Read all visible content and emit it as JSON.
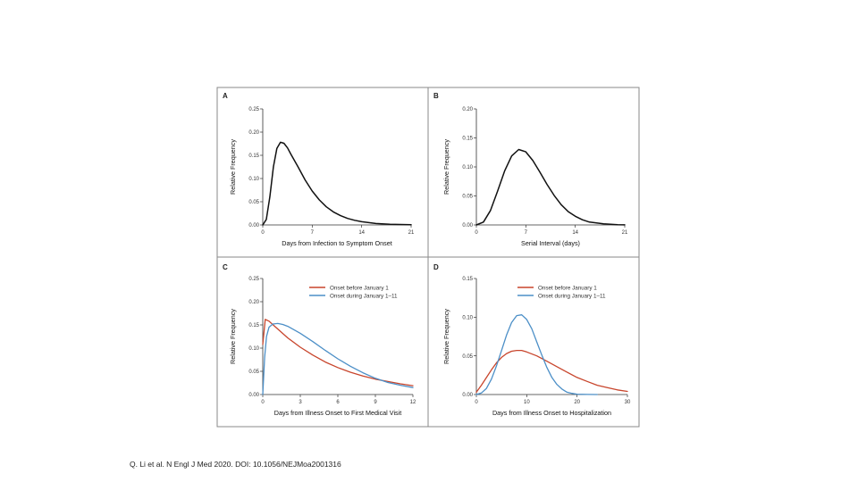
{
  "citation": "Q. Li et al. N Engl J Med 2020. DOI: 10.1056/NEJMoa2001316",
  "colors": {
    "black": "#111111",
    "red": "#c8452c",
    "blue": "#4c8fc7",
    "frame": "#8a8a8a"
  },
  "chart_data": [
    {
      "panel": "A",
      "type": "line",
      "xlabel": "Days from Infection to Symptom Onset",
      "ylabel": "Relative Frequency",
      "xlim": [
        0,
        21
      ],
      "ylim": [
        0,
        0.25
      ],
      "xticks": [
        "0",
        "7",
        "14",
        "21"
      ],
      "yticks": [
        "0.00",
        "0.05",
        "0.10",
        "0.15",
        "0.20",
        "0.25"
      ],
      "legend": [],
      "series": [
        {
          "name": "",
          "color": "#111111",
          "x": [
            0,
            0.5,
            1,
            1.5,
            2,
            2.5,
            3,
            3.5,
            4,
            5,
            6,
            7,
            8,
            9,
            10,
            11,
            12,
            13,
            14,
            16,
            18,
            21
          ],
          "y": [
            0.0,
            0.012,
            0.06,
            0.125,
            0.165,
            0.178,
            0.176,
            0.166,
            0.152,
            0.125,
            0.097,
            0.073,
            0.054,
            0.039,
            0.028,
            0.02,
            0.014,
            0.01,
            0.007,
            0.003,
            0.0015,
            0.0003
          ]
        }
      ]
    },
    {
      "panel": "B",
      "type": "line",
      "xlabel": "Serial Interval (days)",
      "ylabel": "Relative Frequency",
      "xlim": [
        0,
        21
      ],
      "ylim": [
        0,
        0.2
      ],
      "xticks": [
        "0",
        "7",
        "14",
        "21"
      ],
      "yticks": [
        "0.00",
        "0.05",
        "0.10",
        "0.15",
        "0.20"
      ],
      "legend": [],
      "series": [
        {
          "name": "",
          "color": "#111111",
          "x": [
            0,
            1,
            2,
            3,
            4,
            5,
            6,
            7,
            8,
            9,
            10,
            11,
            12,
            13,
            14,
            15,
            16,
            18,
            20,
            21
          ],
          "y": [
            0.0,
            0.005,
            0.025,
            0.058,
            0.093,
            0.119,
            0.13,
            0.126,
            0.111,
            0.091,
            0.07,
            0.051,
            0.035,
            0.023,
            0.015,
            0.009,
            0.005,
            0.002,
            0.0005,
            0.0002
          ]
        }
      ]
    },
    {
      "panel": "C",
      "type": "line",
      "xlabel": "Days from Illness Onset to First Medical Visit",
      "ylabel": "Relative Frequency",
      "xlim": [
        0,
        12
      ],
      "ylim": [
        0,
        0.25
      ],
      "xticks": [
        "0",
        "3",
        "6",
        "9",
        "12"
      ],
      "yticks": [
        "0.00",
        "0.05",
        "0.10",
        "0.15",
        "0.20",
        "0.25"
      ],
      "legend": [
        "Onset before January 1",
        "Onset during January 1–11"
      ],
      "series": [
        {
          "name": "Onset before January 1",
          "color": "#c8452c",
          "x": [
            0,
            0.2,
            0.5,
            1,
            2,
            3,
            4,
            5,
            6,
            7,
            8,
            9,
            10,
            11,
            12
          ],
          "y": [
            0.108,
            0.162,
            0.158,
            0.146,
            0.122,
            0.102,
            0.085,
            0.07,
            0.058,
            0.048,
            0.04,
            0.033,
            0.028,
            0.023,
            0.019
          ]
        }
      ]
    },
    {
      "panel": "C2",
      "type": "line",
      "xlim": [
        0,
        12
      ],
      "ylim": [
        0,
        0.25
      ],
      "series": [
        {
          "name": "Onset during January 1–11",
          "color": "#4c8fc7",
          "x": [
            0,
            0.15,
            0.3,
            0.5,
            0.8,
            1.2,
            1.6,
            2,
            3,
            4,
            5,
            6,
            7,
            8,
            9,
            10,
            11,
            12
          ],
          "y": [
            0.0,
            0.08,
            0.125,
            0.145,
            0.152,
            0.153,
            0.151,
            0.147,
            0.132,
            0.114,
            0.095,
            0.077,
            0.061,
            0.047,
            0.035,
            0.026,
            0.02,
            0.015
          ]
        }
      ]
    },
    {
      "panel": "D",
      "type": "line",
      "xlabel": "Days from Illness Onset to Hospitalization",
      "ylabel": "Relative Frequency",
      "xlim": [
        0,
        30
      ],
      "ylim": [
        0,
        0.15
      ],
      "xticks": [
        "0",
        "10",
        "20",
        "30"
      ],
      "yticks": [
        "0.00",
        "0.05",
        "0.10",
        "0.15"
      ],
      "legend": [
        "Onset before January 1",
        "Onset during January 1–11"
      ],
      "series": [
        {
          "name": "Onset before January 1",
          "color": "#c8452c",
          "x": [
            0,
            1,
            2,
            3,
            4,
            5,
            6,
            7,
            8,
            9,
            10,
            12,
            14,
            16,
            18,
            20,
            22,
            24,
            26,
            28,
            30
          ],
          "y": [
            0.003,
            0.012,
            0.022,
            0.032,
            0.041,
            0.048,
            0.053,
            0.056,
            0.057,
            0.057,
            0.055,
            0.05,
            0.043,
            0.036,
            0.029,
            0.022,
            0.017,
            0.012,
            0.009,
            0.006,
            0.004
          ]
        },
        {
          "name": "Onset during January 1–11",
          "color": "#4c8fc7",
          "x": [
            0,
            1,
            2,
            3,
            4,
            5,
            6,
            7,
            8,
            9,
            10,
            11,
            12,
            13,
            14,
            15,
            16,
            17,
            18,
            19,
            20,
            22,
            24
          ],
          "y": [
            0.0,
            0.002,
            0.008,
            0.02,
            0.037,
            0.057,
            0.077,
            0.093,
            0.102,
            0.103,
            0.097,
            0.085,
            0.068,
            0.051,
            0.035,
            0.022,
            0.013,
            0.007,
            0.003,
            0.0015,
            0.0005,
            0.0001,
            0.0
          ]
        }
      ]
    }
  ]
}
